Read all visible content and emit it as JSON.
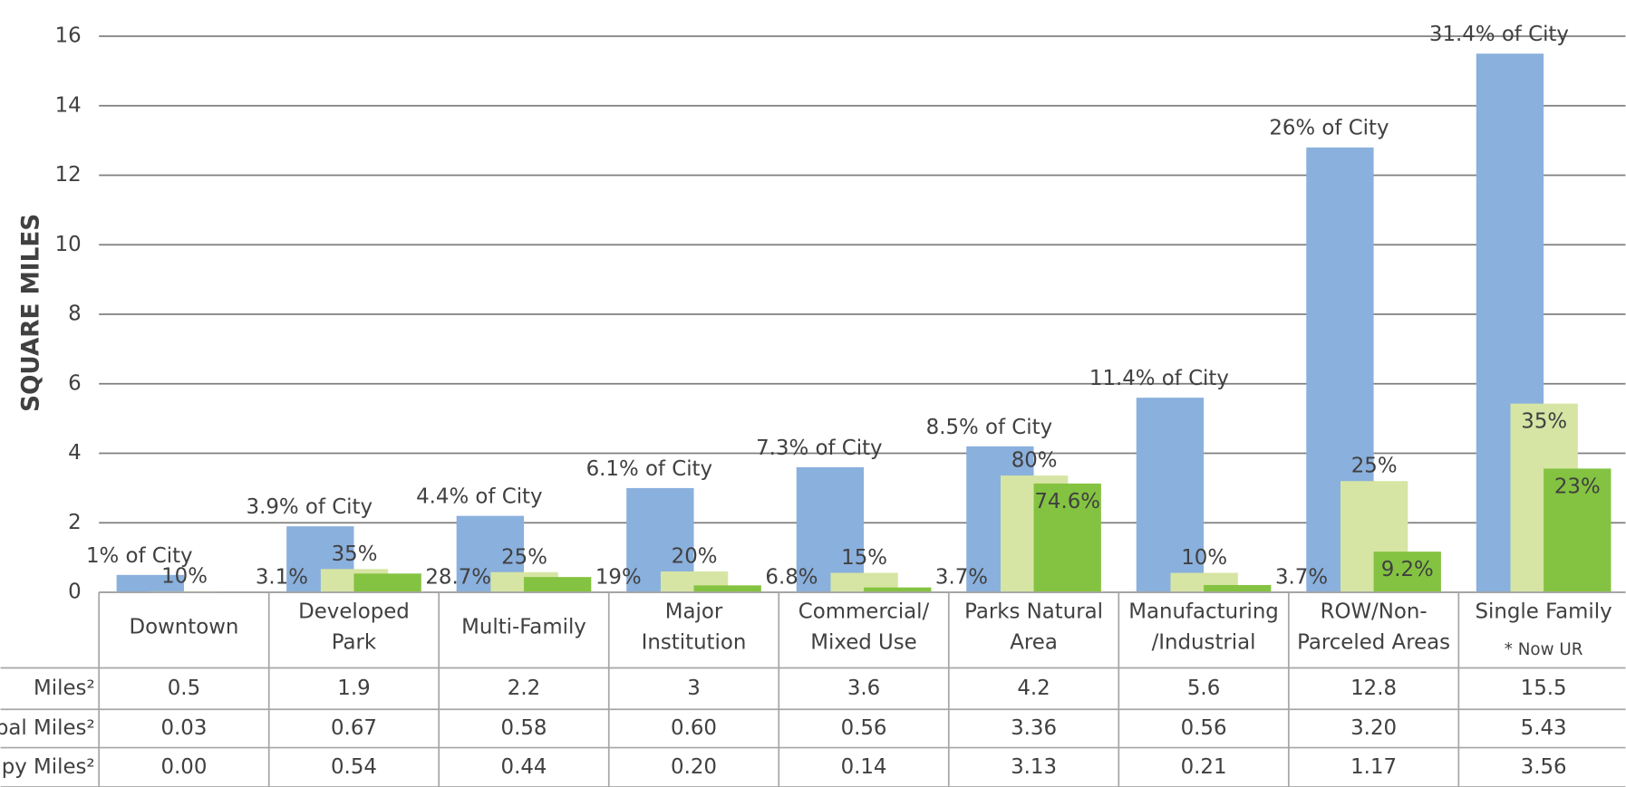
{
  "chart_data": {
    "type": "bar",
    "y_label": "SQUARE MILES",
    "categories": [
      [
        "Downtown"
      ],
      [
        "Developed",
        "Park"
      ],
      [
        "Multi-Family"
      ],
      [
        "Major",
        "Institution"
      ],
      [
        "Commercial/",
        "Mixed Use"
      ],
      [
        "Parks Natural",
        "Area"
      ],
      [
        "Manufacturing",
        "/Industrial"
      ],
      [
        "ROW/Non-",
        "Parceled Areas"
      ],
      [
        "Single Family",
        "* Now UR"
      ]
    ],
    "ylim": [
      0,
      16
    ],
    "yticks": [
      0,
      2,
      4,
      6,
      8,
      10,
      12,
      14,
      16
    ],
    "grid": true,
    "series": [
      {
        "name": "Miles²",
        "color": "#8ab0dd",
        "values": [
          0.5,
          1.9,
          2.2,
          3,
          3.6,
          4.2,
          5.6,
          12.8,
          15.5
        ],
        "bar_labels": [
          "1% of City",
          "3.9% of City",
          "4.4% of City",
          "6.1% of City",
          "7.3% of City",
          "8.5% of City",
          "11.4% of City",
          "26% of City",
          "31.4% of City"
        ]
      },
      {
        "name": "bal Miles²",
        "color": "#d6e5a3",
        "values": [
          0.03,
          0.67,
          0.58,
          0.6,
          0.56,
          3.36,
          0.56,
          3.2,
          5.43
        ],
        "value_labels": [
          "0.03",
          "0.67",
          "0.58",
          "0.60",
          "0.56",
          "3.36",
          "0.56",
          "3.20",
          "5.43"
        ],
        "bar_labels": [
          "10%",
          "35%",
          "25%",
          "20%",
          "15%",
          "80%",
          "10%",
          "25%",
          "35%"
        ]
      },
      {
        "name": "py Miles²",
        "color": "#84c341",
        "values": [
          0,
          0.54,
          0.44,
          0.2,
          0.14,
          3.13,
          0.21,
          1.17,
          3.56
        ],
        "value_labels": [
          "0.00",
          "0.54",
          "0.44",
          "0.20",
          "0.14",
          "3.13",
          "0.21",
          "1.17",
          "3.56"
        ],
        "bar_labels": [
          "3.1%",
          "28.7%",
          "19%",
          "6.8%",
          "3.7%",
          "74.6%",
          "3.7%",
          "9.2%",
          "23%"
        ]
      }
    ]
  }
}
